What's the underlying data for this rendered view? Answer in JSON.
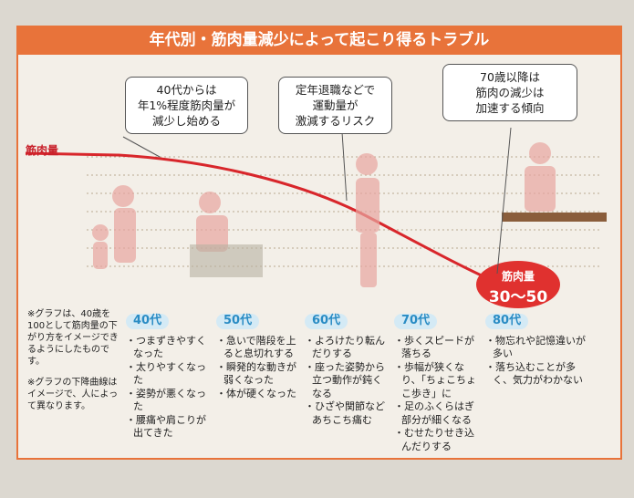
{
  "title": "年代別・筋肉量減少によって起こり得るトラブル",
  "curve_label": "筋肉量",
  "callouts": [
    {
      "lines": [
        "40代からは",
        "年1%程度筋肉量が",
        "減少し始める"
      ]
    },
    {
      "lines": [
        "定年退職などで",
        "運動量が",
        "激減するリスク"
      ]
    },
    {
      "lines": [
        "70歳以降は",
        "筋肉の減少は",
        "加速する傾向"
      ]
    }
  ],
  "end_badge": {
    "label": "筋肉量",
    "value": "30〜50"
  },
  "notes": [
    "※グラフは、40歳を100として筋肉量の下がり方をイメージできるようにしたものです。",
    "※グラフの下降曲線はイメージで、人によって異なります。"
  ],
  "ages": [
    {
      "label": "40代",
      "items": [
        "つまずきやすくなった",
        "太りやすくなった",
        "姿勢が悪くなった",
        "腰痛や肩こりが出てきた"
      ]
    },
    {
      "label": "50代",
      "items": [
        "急いで階段を上ると息切れする",
        "瞬発的な動きが弱くなった",
        "体が硬くなった"
      ]
    },
    {
      "label": "60代",
      "items": [
        "よろけたり転んだりする",
        "座った姿勢から立つ動作が鈍くなる",
        "ひざや関節などあちこち痛む"
      ]
    },
    {
      "label": "70代",
      "items": [
        "歩くスピードが落ちる",
        "歩幅が狭くなり、「ちょこちょこ歩き」に",
        "足のふくらはぎ部分が細くなる",
        "むせたりせき込んだりする"
      ]
    },
    {
      "label": "80代",
      "items": [
        "物忘れや記憶違いが多い",
        "落ち込むことが多く、気力がわかない"
      ]
    }
  ]
}
